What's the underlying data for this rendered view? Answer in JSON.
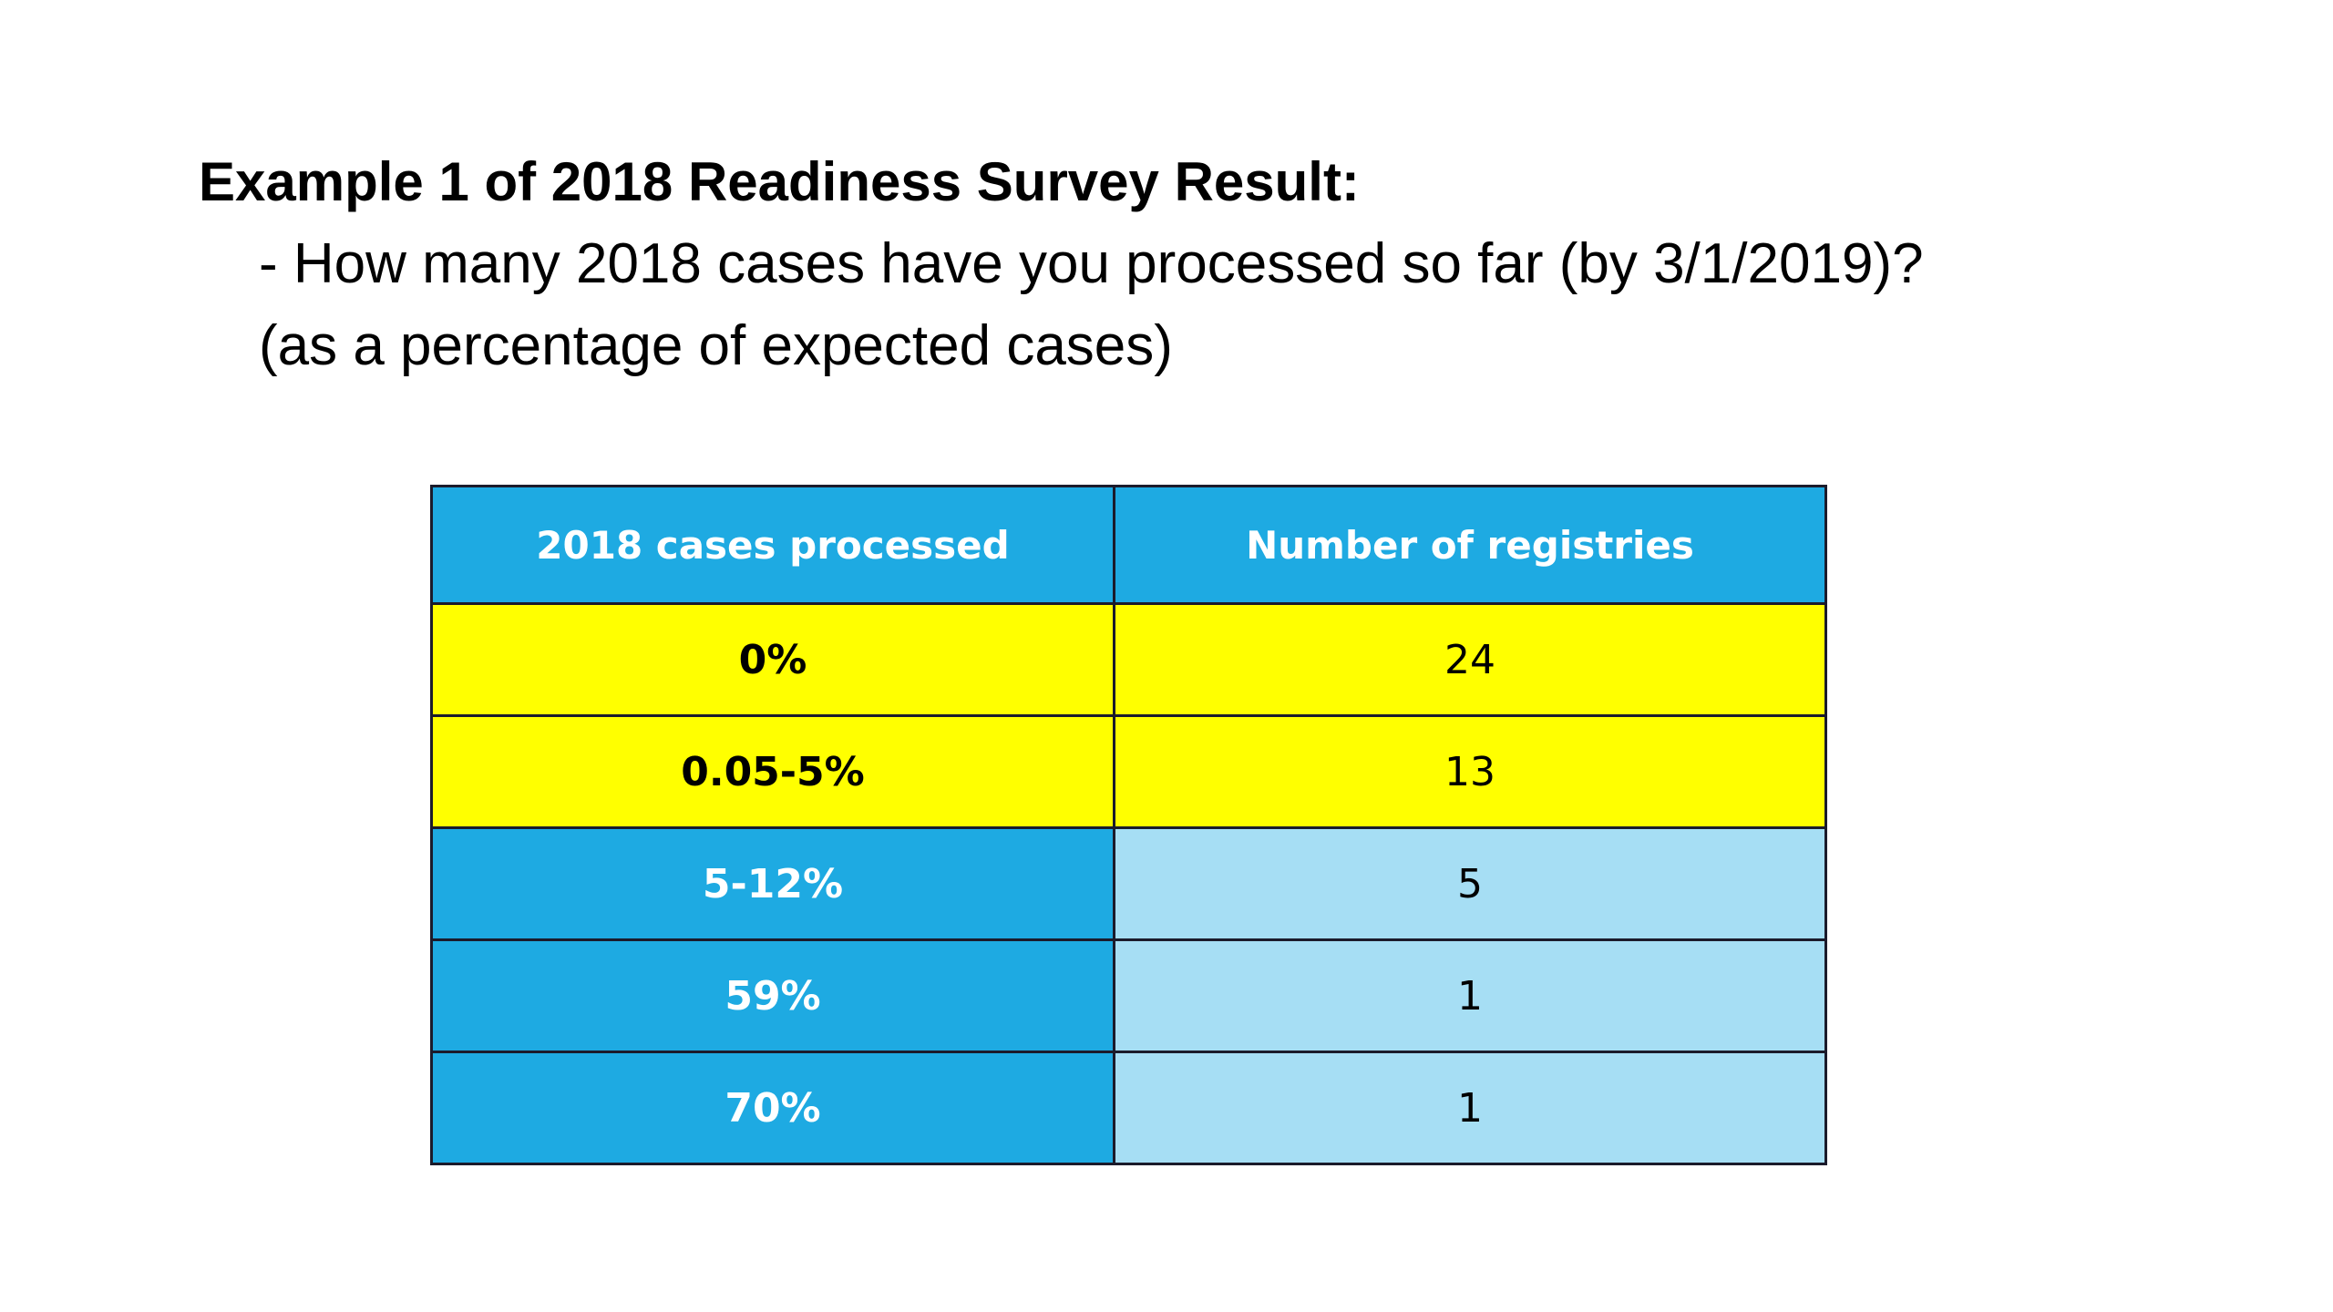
{
  "slide": {
    "heading": "Example 1 of 2018 Readiness Survey Result:",
    "question_line1": "- How many 2018 cases have you processed so far (by 3/1/2019)?",
    "question_line2": "(as a percentage of expected cases)"
  },
  "table": {
    "headers": [
      "2018 cases processed",
      "Number of registries"
    ],
    "rows": [
      {
        "range": "0%",
        "count": "24",
        "highlight": "yellow"
      },
      {
        "range": "0.05-5%",
        "count": "13",
        "highlight": "yellow"
      },
      {
        "range": "5-12%",
        "count": "5",
        "highlight": "blue"
      },
      {
        "range": "59%",
        "count": "1",
        "highlight": "blue"
      },
      {
        "range": "70%",
        "count": "1",
        "highlight": "blue"
      }
    ]
  },
  "colors": {
    "header_blue": "#1eaae2",
    "light_blue": "#a6def4",
    "highlight_yellow": "#ffff00"
  }
}
